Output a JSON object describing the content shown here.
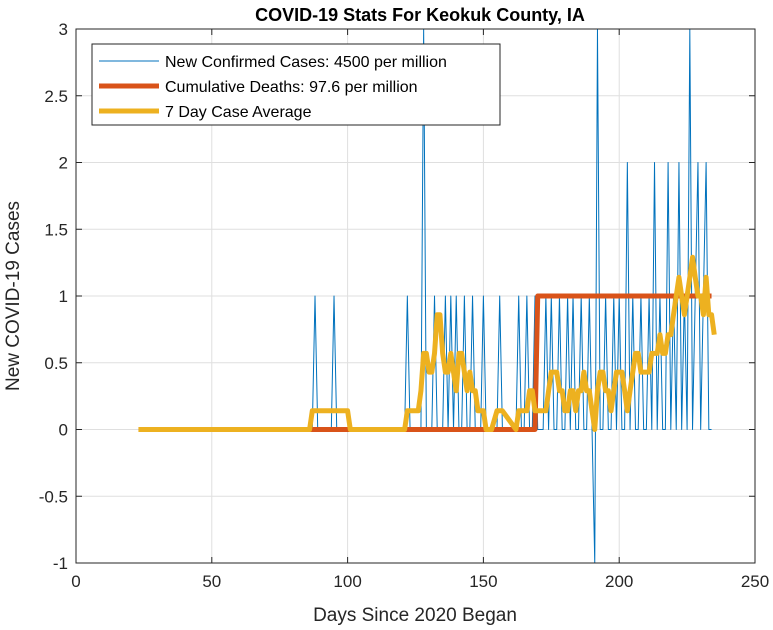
{
  "chart_data": {
    "type": "line",
    "title": "COVID-19 Stats For Keokuk County, IA",
    "xlabel": "Days Since 2020 Began",
    "ylabel": "New COVID-19 Cases",
    "xlim": [
      0,
      250
    ],
    "ylim": [
      -1,
      3
    ],
    "xticks": [
      0,
      50,
      100,
      150,
      200,
      250
    ],
    "yticks": [
      -1,
      -0.5,
      0,
      0.5,
      1,
      1.5,
      2,
      2.5,
      3
    ],
    "grid": true,
    "legend_position": "top-left",
    "series": [
      {
        "name": "New Confirmed Cases: 4500 per million",
        "color": "#0072BD",
        "x": [
          23,
          87,
          88,
          89,
          94,
          95,
          96,
          121,
          122,
          123,
          127,
          128,
          129,
          131,
          132,
          133,
          134,
          135,
          136,
          137,
          138,
          139,
          140,
          141,
          142,
          143,
          144,
          145,
          146,
          147,
          148,
          149,
          150,
          151,
          152,
          153,
          155,
          156,
          157,
          158,
          159,
          160,
          161,
          162,
          163,
          164,
          165,
          166,
          167,
          168,
          169,
          170,
          171,
          172,
          173,
          174,
          175,
          176,
          177,
          178,
          179,
          180,
          181,
          182,
          183,
          184,
          185,
          186,
          187,
          188,
          189,
          190,
          191,
          192,
          193,
          194,
          195,
          196,
          197,
          198,
          199,
          200,
          201,
          202,
          203,
          204,
          205,
          206,
          207,
          208,
          209,
          210,
          211,
          212,
          213,
          214,
          215,
          216,
          217,
          218,
          219,
          220,
          221,
          222,
          223,
          224,
          225,
          226,
          227,
          228,
          229,
          230,
          231,
          232,
          233,
          234
        ],
        "y": [
          0,
          0,
          1,
          0,
          0,
          1,
          0,
          0,
          1,
          0,
          0,
          3,
          0,
          0,
          1,
          0,
          0,
          0,
          1,
          0,
          1,
          0,
          1,
          0,
          0,
          1,
          0,
          0,
          1,
          0,
          0,
          0,
          1,
          0,
          0,
          0,
          0,
          1,
          0,
          0,
          0,
          0,
          0,
          0,
          1,
          0,
          0,
          1,
          0,
          0,
          1,
          0,
          0,
          0,
          1,
          0,
          1,
          0,
          0,
          1,
          0,
          0,
          1,
          0,
          1,
          0,
          0,
          1,
          0,
          0,
          1,
          0,
          -1,
          3,
          0,
          0,
          1,
          0,
          0,
          1,
          0,
          1,
          0,
          0,
          2,
          0,
          1,
          0,
          0,
          1,
          0,
          0,
          1,
          0,
          2,
          0,
          1,
          0,
          0,
          2,
          0,
          1,
          0,
          2,
          0,
          1,
          0,
          3,
          0,
          1,
          2,
          0,
          1,
          2,
          0,
          0
        ]
      },
      {
        "name": "Cumulative Deaths: 97.6 per million",
        "color": "#D95319",
        "x": [
          23,
          88,
          169,
          170,
          234
        ],
        "y": [
          0,
          0,
          0,
          1,
          1
        ]
      },
      {
        "name": "7 Day Case Average",
        "color": "#EDB120",
        "x": [
          23,
          86,
          87,
          88,
          100,
          101,
          121,
          122,
          123,
          126,
          127,
          128,
          129,
          130,
          131,
          132,
          133,
          134,
          135,
          136,
          137,
          138,
          139,
          140,
          141,
          142,
          143,
          144,
          145,
          146,
          147,
          148,
          149,
          150,
          151,
          152,
          153,
          155,
          156,
          157,
          162,
          163,
          164,
          165,
          166,
          167,
          168,
          169,
          170,
          171,
          172,
          173,
          174,
          175,
          176,
          177,
          178,
          179,
          180,
          181,
          182,
          183,
          184,
          185,
          186,
          187,
          188,
          189,
          190,
          191,
          192,
          193,
          194,
          195,
          196,
          197,
          198,
          199,
          200,
          201,
          202,
          203,
          204,
          205,
          206,
          207,
          208,
          209,
          210,
          211,
          212,
          213,
          214,
          215,
          216,
          217,
          218,
          219,
          220,
          221,
          222,
          223,
          224,
          225,
          226,
          227,
          228,
          229,
          230,
          231,
          232,
          233,
          234,
          235
        ],
        "y": [
          0,
          0,
          0.14,
          0.14,
          0.14,
          0,
          0,
          0.14,
          0.14,
          0.14,
          0.29,
          0.57,
          0.57,
          0.43,
          0.43,
          0.57,
          0.86,
          0.86,
          0.57,
          0.43,
          0.43,
          0.57,
          0.43,
          0.29,
          0.57,
          0.57,
          0.43,
          0.29,
          0.43,
          0.29,
          0.29,
          0.14,
          0.14,
          0.14,
          0,
          0,
          0,
          0.14,
          0.14,
          0.14,
          0,
          0.14,
          0.14,
          0.14,
          0.14,
          0.29,
          0.29,
          0.14,
          0.14,
          0.14,
          0.14,
          0.14,
          0.29,
          0.43,
          0.43,
          0.43,
          0.29,
          0.29,
          0.14,
          0.14,
          0.29,
          0.29,
          0.14,
          0.29,
          0.29,
          0.43,
          0.29,
          0.29,
          0.14,
          0,
          0.29,
          0.43,
          0.43,
          0.29,
          0.29,
          0.14,
          0.29,
          0.43,
          0.43,
          0.43,
          0.29,
          0.14,
          0.29,
          0.43,
          0.57,
          0.57,
          0.43,
          0.43,
          0.43,
          0.43,
          0.57,
          0.57,
          0.57,
          0.71,
          0.57,
          0.57,
          0.71,
          0.71,
          0.86,
          1,
          1.14,
          1,
          0.86,
          1,
          1.14,
          1.29,
          1.14,
          1,
          1,
          0.86,
          1.14,
          0.86,
          0.86,
          0.71
        ]
      }
    ]
  }
}
